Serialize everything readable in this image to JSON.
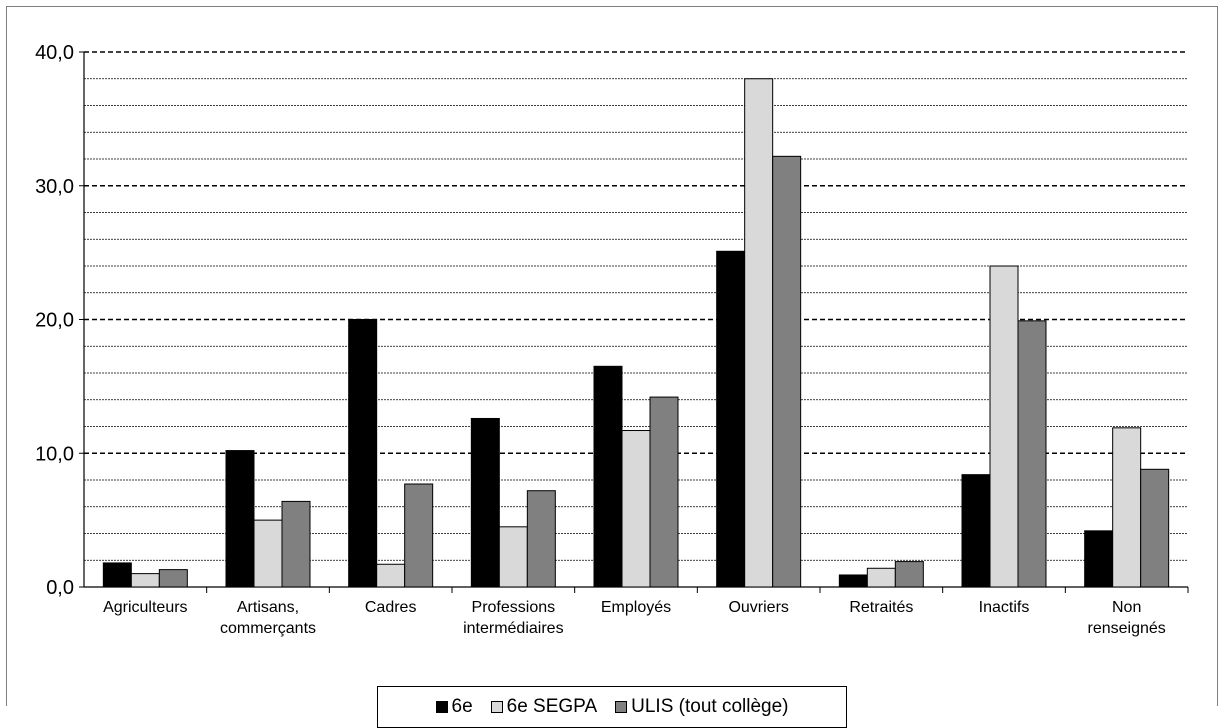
{
  "chart_data": {
    "type": "bar",
    "title": "",
    "xlabel": "",
    "ylabel": "",
    "ylim": [
      0,
      40
    ],
    "yticks": [
      "0,0",
      "10,0",
      "20,0",
      "30,0",
      "40,0"
    ],
    "grid": "on",
    "legend_position": "bottom",
    "categories": [
      [
        "Agriculteurs"
      ],
      [
        "Artisans,",
        "commerçants"
      ],
      [
        "Cadres"
      ],
      [
        "Professions",
        "intermédiaires"
      ],
      [
        "Employés"
      ],
      [
        "Ouvriers"
      ],
      [
        "Retraités"
      ],
      [
        "Inactifs"
      ],
      [
        "Non",
        "renseignés"
      ]
    ],
    "series": [
      {
        "name": "6e",
        "color": "#000000",
        "values": [
          1.8,
          10.2,
          20.0,
          12.6,
          16.5,
          25.1,
          0.9,
          8.4,
          4.2
        ]
      },
      {
        "name": "6e SEGPA",
        "color": "#d9d9d9",
        "values": [
          1.0,
          5.0,
          1.7,
          4.5,
          11.7,
          38.0,
          1.4,
          24.0,
          11.9
        ]
      },
      {
        "name": "ULIS (tout collège)",
        "color": "#808080",
        "values": [
          1.3,
          6.4,
          7.7,
          7.2,
          14.2,
          32.2,
          1.9,
          19.9,
          8.8
        ]
      }
    ]
  }
}
